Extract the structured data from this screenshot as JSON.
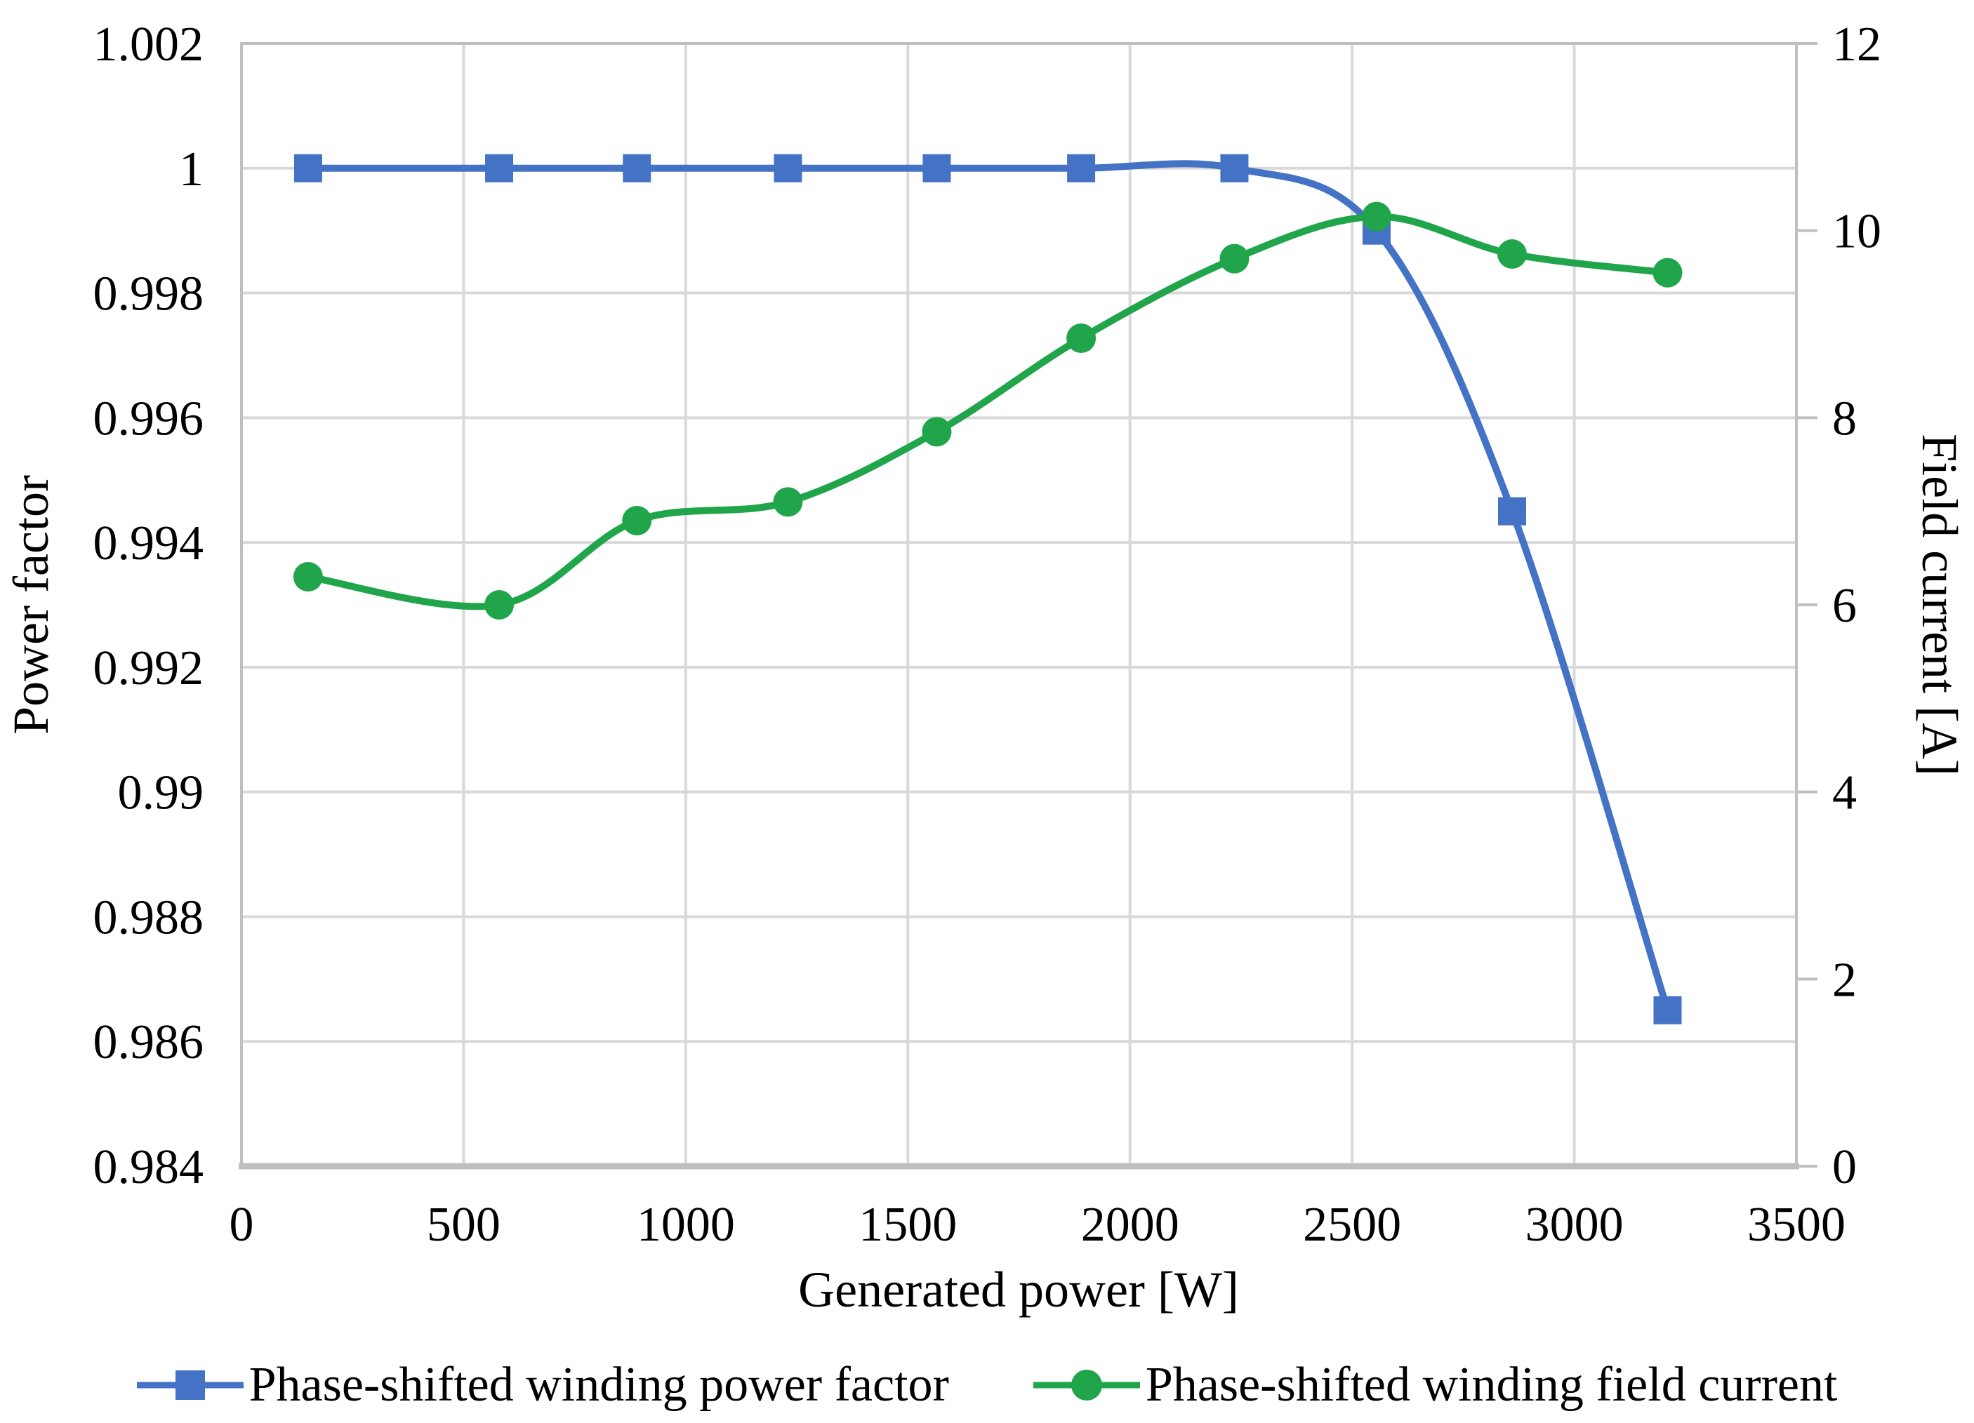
{
  "chart_data": {
    "type": "line",
    "title": "",
    "x": [
      150,
      580,
      890,
      1230,
      1565,
      1890,
      2235,
      2555,
      2860,
      3210
    ],
    "series": [
      {
        "name": "Phase-shifted winding power factor",
        "axis": "left",
        "color": "#4472C4",
        "marker": "square",
        "values": [
          1.0,
          1.0,
          1.0,
          1.0,
          1.0,
          1.0,
          1.0,
          0.999,
          0.9945,
          0.9865
        ]
      },
      {
        "name": "Phase-shifted winding field current",
        "axis": "right",
        "color": "#21A54B",
        "marker": "circle",
        "values": [
          6.3,
          6.0,
          6.9,
          7.1,
          7.85,
          8.85,
          9.7,
          10.15,
          9.75,
          9.55
        ]
      }
    ],
    "xlabel": "Generated power [W]",
    "ylabel_left": "Power factor",
    "ylabel_right": "Field current [A]",
    "xlim": [
      0,
      3500
    ],
    "ylim_left": [
      0.984,
      1.002
    ],
    "ylim_right": [
      0,
      12
    ],
    "x_ticks": [
      "0",
      "500",
      "1000",
      "1500",
      "2000",
      "2500",
      "3000",
      "3500"
    ],
    "y_ticks_left": [
      "1.002",
      "1",
      "0.998",
      "0.996",
      "0.994",
      "0.992",
      "0.99",
      "0.988",
      "0.986",
      "0.984"
    ],
    "y_ticks_right": [
      "12",
      "10",
      "8",
      "6",
      "4",
      "2",
      "0"
    ],
    "grid": true,
    "legend_position": "bottom",
    "grid_color": "#D9D9D9",
    "axis_color": "#BFBFBF",
    "text_color": "#000000",
    "background": "#FFFFFF"
  }
}
